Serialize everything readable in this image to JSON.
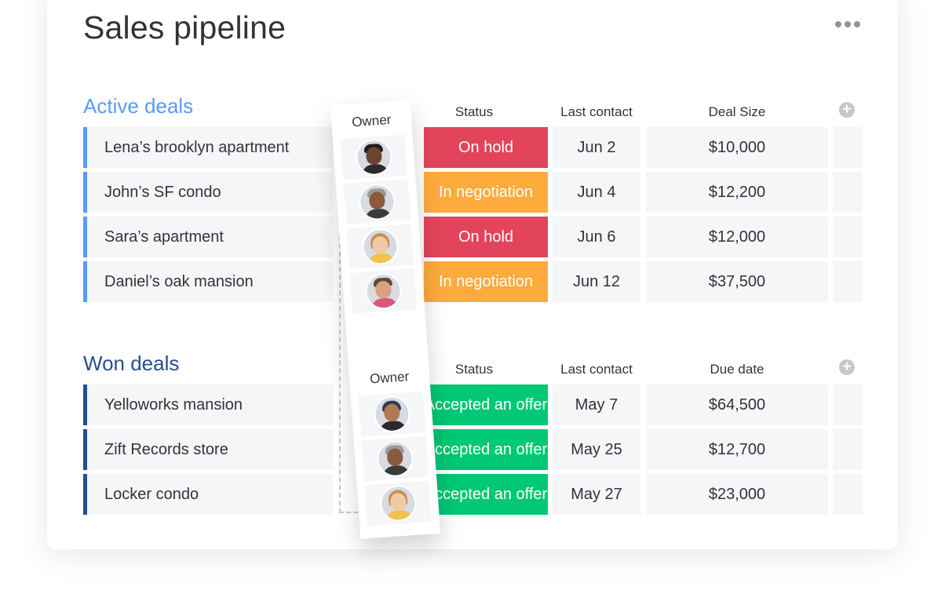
{
  "board": {
    "title": "Sales pipeline",
    "more_icon": "more-horizontal-icon"
  },
  "colors": {
    "active_accent": "#579bfc",
    "won_accent": "#225091",
    "on_hold": "#e2445c",
    "in_negotiation": "#fdab3d",
    "accepted_offer": "#00c875"
  },
  "active_group": {
    "title": "Active deals",
    "columns": {
      "owner": "Owner",
      "status": "Status",
      "last_contact": "Last contact",
      "deal_size": "Deal Size"
    },
    "rows": [
      {
        "name": "Lena’s brooklyn apartment",
        "status": "On hold",
        "status_color": "#e2445c",
        "last_contact": "Jun 2",
        "deal_size": "$10,000"
      },
      {
        "name": "John’s SF condo",
        "status": "In negotiation",
        "status_color": "#fdab3d",
        "last_contact": "Jun 4",
        "deal_size": "$12,200"
      },
      {
        "name": "Sara’s apartment",
        "status": "On hold",
        "status_color": "#e2445c",
        "last_contact": "Jun 6",
        "deal_size": "$12,000"
      },
      {
        "name": "Daniel’s oak mansion",
        "status": "In negotiation",
        "status_color": "#fdab3d",
        "last_contact": "Jun 12",
        "deal_size": "$37,500"
      }
    ]
  },
  "won_group": {
    "title": "Won deals",
    "columns": {
      "owner": "Owner",
      "status": "Status",
      "last_contact": "Last contact",
      "due_date": "Due date"
    },
    "rows": [
      {
        "name": "Yelloworks mansion",
        "status": "Accepted an offer",
        "status_color": "#00c875",
        "last_contact": "May 7",
        "due_date": "$64,500"
      },
      {
        "name": "Zift Records store",
        "status": "Accepted an offer",
        "status_color": "#00c875",
        "last_contact": "May 25",
        "due_date": "$12,700"
      },
      {
        "name": "Locker condo",
        "status": "Accepted an offer",
        "status_color": "#00c875",
        "last_contact": "May 27",
        "due_date": "$23,000"
      }
    ]
  }
}
